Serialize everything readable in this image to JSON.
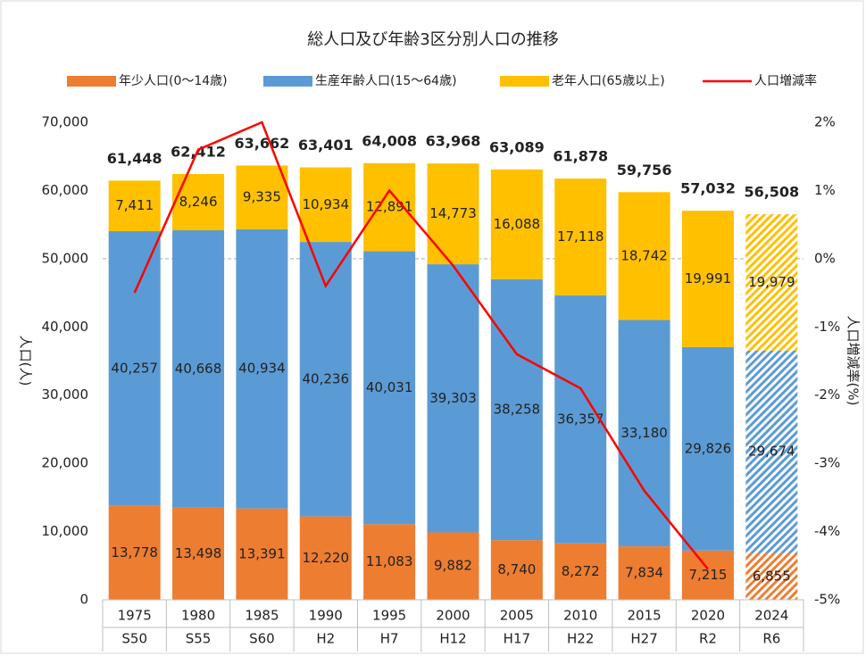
{
  "chart_data": {
    "type": "stacked_bar_line",
    "title": "総人口及び年齢3区分別人口の推移",
    "ylabel": "人口(人)",
    "y2label": "人口増減率(%)",
    "categories": [
      "1975",
      "1980",
      "1985",
      "1990",
      "1995",
      "2000",
      "2005",
      "2010",
      "2015",
      "2020",
      "2024"
    ],
    "sub_categories": [
      "S50",
      "S55",
      "S60",
      "H2",
      "H7",
      "H12",
      "H17",
      "H22",
      "H27",
      "R2",
      "R6"
    ],
    "hatched": [
      false,
      false,
      false,
      false,
      false,
      false,
      false,
      false,
      false,
      false,
      true
    ],
    "series": [
      {
        "name": "年少人口(0～14歳)",
        "color": "#ED7D31",
        "values": [
          13778,
          13498,
          13391,
          12220,
          11083,
          9882,
          8740,
          8272,
          7834,
          7215,
          6855
        ],
        "value_labels": [
          "13,778",
          "13,498",
          "13,391",
          "12,220",
          "11,083",
          "9,882",
          "8,740",
          "8,272",
          "7,834",
          "7,215",
          "6,855"
        ]
      },
      {
        "name": "生産年齢人口(15～64歳)",
        "color": "#5B9BD5",
        "values": [
          40257,
          40668,
          40934,
          40236,
          40031,
          39303,
          38258,
          36357,
          33180,
          29826,
          29674
        ],
        "value_labels": [
          "40,257",
          "40,668",
          "40,934",
          "40,236",
          "40,031",
          "39,303",
          "38,258",
          "36,357",
          "33,180",
          "29,826",
          "29,674"
        ]
      },
      {
        "name": "老年人口(65歳以上)",
        "color": "#FFC000",
        "values": [
          7411,
          8246,
          9335,
          10934,
          12891,
          14773,
          16088,
          17118,
          18742,
          19991,
          19979
        ],
        "value_labels": [
          "7,411",
          "8,246",
          "9,335",
          "10,934",
          "12,891",
          "14,773",
          "16,088",
          "17,118",
          "18,742",
          "19,991",
          "19,979"
        ]
      },
      {
        "name": "人口増減率",
        "color": "#FF0000",
        "axis": "y2",
        "line": true,
        "values": [
          -0.5,
          1.6,
          2.0,
          -0.4,
          1.0,
          -0.1,
          -1.4,
          -1.9,
          -3.4,
          -4.55,
          null
        ]
      }
    ],
    "totals": [
      61448,
      62412,
      63662,
      63401,
      64008,
      63968,
      63089,
      61878,
      59756,
      57032,
      56508
    ],
    "total_labels": [
      "61,448",
      "62,412",
      "63,662",
      "63,401",
      "64,008",
      "63,968",
      "63,089",
      "61,878",
      "59,756",
      "57,032",
      "56,508"
    ],
    "ylim": [
      0,
      70000
    ],
    "yticks": [
      0,
      {
        "value": 10000,
        "label": "10,000"
      },
      {
        "value": 20000,
        "label": "20,000"
      },
      {
        "value": 30000,
        "label": "30,000"
      },
      {
        "value": 40000,
        "label": "40,000"
      },
      {
        "value": 50000,
        "label": "50,000"
      },
      {
        "value": 60000,
        "label": "60,000"
      },
      {
        "value": 70000,
        "label": "70,000"
      }
    ],
    "y2lim": [
      -5,
      2
    ],
    "y2ticks": [
      {
        "value": -5,
        "label": "-5%"
      },
      {
        "value": -4,
        "label": "-4%"
      },
      {
        "value": -3,
        "label": "-3%"
      },
      {
        "value": -2,
        "label": "-2%"
      },
      {
        "value": -1,
        "label": "-1%"
      },
      {
        "value": 0,
        "label": "0%"
      },
      {
        "value": 1,
        "label": "1%"
      },
      {
        "value": 2,
        "label": "2%"
      }
    ],
    "legend": "top"
  }
}
